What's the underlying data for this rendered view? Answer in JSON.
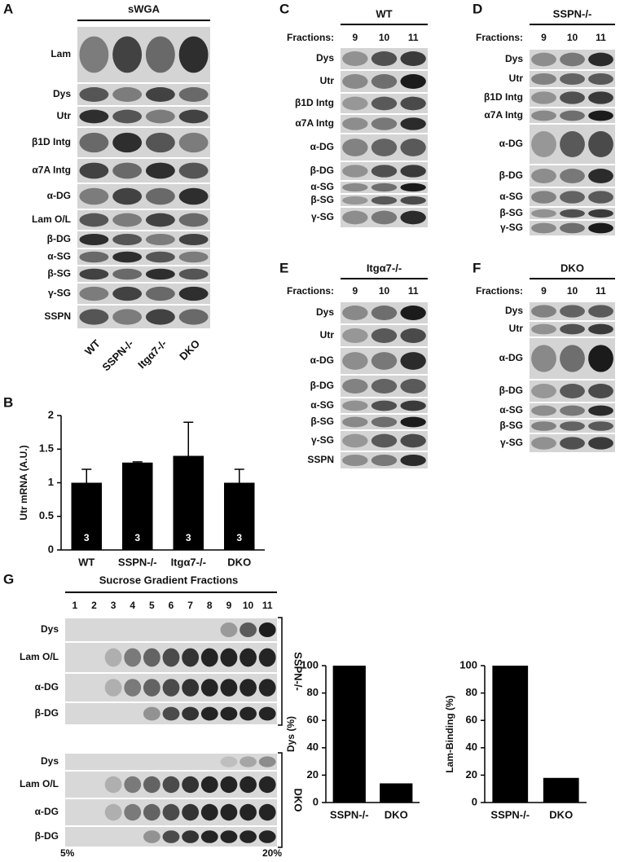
{
  "panels": {
    "A": {
      "label": "A",
      "header": "sWGA",
      "rows": [
        "Lam",
        "Dys",
        "Utr",
        "β1D Intg",
        "α7A Intg",
        "α-DG",
        "Lam O/L",
        "β-DG",
        "α-SG",
        "β-SG",
        "γ-SG",
        "SSPN"
      ],
      "columns": [
        "WT",
        "SSPN-/-",
        "Itgα7-/-",
        "DKO"
      ]
    },
    "C": {
      "label": "C",
      "header": "WT",
      "fractions_label": "Fractions:",
      "fractions": [
        "9",
        "10",
        "11"
      ],
      "rows": [
        "Dys",
        "Utr",
        "β1D Intg",
        "α7A Intg",
        "α-DG",
        "β-DG",
        "α-SG",
        "β-SG",
        "γ-SG"
      ]
    },
    "D": {
      "label": "D",
      "header": "SSPN-/-",
      "fractions_label": "Fractions:",
      "fractions": [
        "9",
        "10",
        "11"
      ],
      "rows": [
        "Dys",
        "Utr",
        "β1D Intg",
        "α7A Intg",
        "α-DG",
        "β-DG",
        "α-SG",
        "β-SG",
        "γ-SG"
      ]
    },
    "E": {
      "label": "E",
      "header": "Itgα7-/-",
      "fractions_label": "Fractions:",
      "fractions": [
        "9",
        "10",
        "11"
      ],
      "rows": [
        "Dys",
        "Utr",
        "α-DG",
        "β-DG",
        "α-SG",
        "β-SG",
        "γ-SG",
        "SSPN"
      ]
    },
    "F": {
      "label": "F",
      "header": "DKO",
      "fractions_label": "Fractions:",
      "fractions": [
        "9",
        "10",
        "11"
      ],
      "rows": [
        "Dys",
        "Utr",
        "α-DG",
        "β-DG",
        "α-SG",
        "β-SG",
        "γ-SG"
      ]
    },
    "G": {
      "label": "G",
      "header": "Sucrose Gradient Fractions",
      "fractions": [
        "1",
        "2",
        "3",
        "4",
        "5",
        "6",
        "7",
        "8",
        "9",
        "10",
        "11"
      ],
      "groups": [
        {
          "name": "SSPN-/-",
          "rows": [
            "Dys",
            "Lam O/L",
            "α-DG",
            "β-DG"
          ]
        },
        {
          "name": "DKO",
          "rows": [
            "Dys",
            "Lam O/L",
            "α-DG",
            "β-DG"
          ]
        }
      ],
      "range": [
        "5%",
        "20%"
      ]
    }
  },
  "chart_data": [
    {
      "type": "bar",
      "label": "B",
      "ylabel": "Utr mRNA (A.U.)",
      "categories": [
        "WT",
        "SSPN-/-",
        "Itgα7-/-",
        "DKO"
      ],
      "values": [
        1,
        1.3,
        1.4,
        1
      ],
      "errors": [
        0.2,
        0.01,
        0.5,
        0.2
      ],
      "n": [
        3,
        3,
        3,
        3
      ],
      "color": "#000000",
      "ylim": [
        0,
        2
      ],
      "yticks": [
        0,
        0.5,
        1,
        1.5,
        2
      ]
    },
    {
      "type": "bar",
      "ylabel": "Dys (%)",
      "categories": [
        "SSPN-/-",
        "DKO"
      ],
      "values": [
        100,
        14
      ],
      "color": "#000000",
      "ylim": [
        0,
        100
      ],
      "yticks": [
        0,
        20,
        40,
        60,
        80,
        100
      ]
    },
    {
      "type": "bar",
      "ylabel": "Lam-Binding (%)",
      "categories": [
        "SSPN-/-",
        "DKO"
      ],
      "values": [
        100,
        18
      ],
      "color": "#000000",
      "ylim": [
        0,
        100
      ],
      "yticks": [
        0,
        20,
        40,
        60,
        80,
        100
      ]
    }
  ]
}
